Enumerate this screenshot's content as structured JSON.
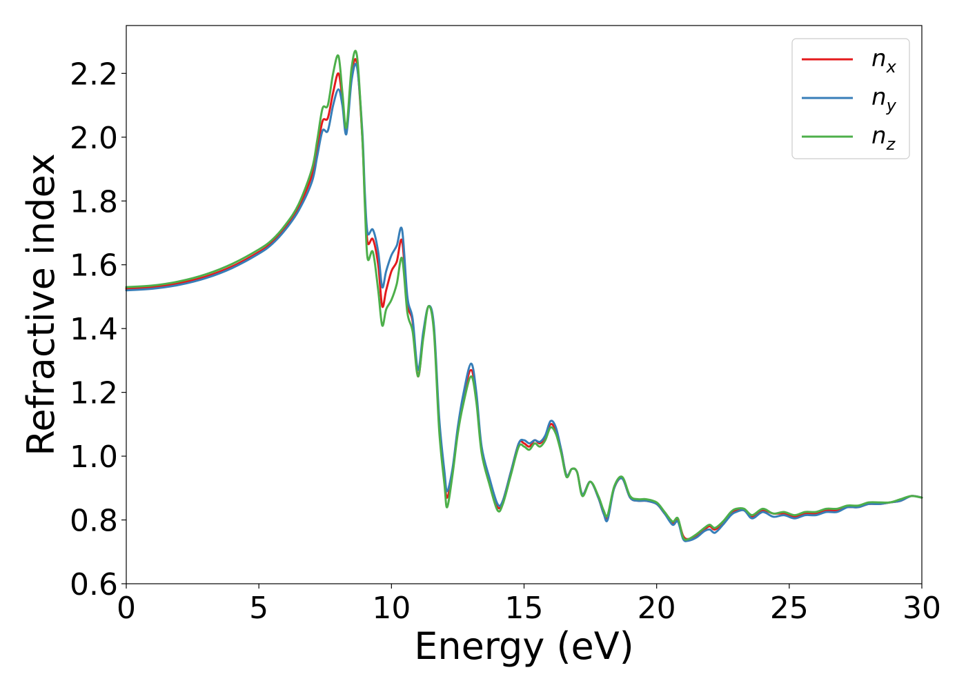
{
  "chart_data": {
    "type": "line",
    "title": "",
    "xlabel": "Energy (eV)",
    "ylabel": "Refractive index",
    "xlim": [
      0,
      30
    ],
    "ylim": [
      0.6,
      2.35
    ],
    "xticks": [
      0,
      5,
      10,
      15,
      20,
      25,
      30
    ],
    "xtick_labels": [
      "0",
      "5",
      "10",
      "15",
      "20",
      "25",
      "30"
    ],
    "yticks": [
      0.6,
      0.8,
      1.0,
      1.2,
      1.4,
      1.6,
      1.8,
      2.0,
      2.2
    ],
    "ytick_labels": [
      "0.6",
      "0.8",
      "1.0",
      "1.2",
      "1.4",
      "1.6",
      "1.8",
      "2.0",
      "2.2"
    ],
    "grid": false,
    "legend_position": "top-right",
    "series": [
      {
        "name": "n_x",
        "legend_main": "n",
        "legend_sub": "x",
        "color": "#e41a1c",
        "x": [
          0,
          1,
          2,
          3,
          4,
          5,
          5.5,
          6,
          6.5,
          7,
          7.2,
          7.4,
          7.6,
          7.8,
          8.0,
          8.15,
          8.3,
          8.5,
          8.7,
          8.9,
          9.0,
          9.1,
          9.3,
          9.5,
          9.65,
          9.8,
          10.0,
          10.2,
          10.4,
          10.6,
          10.8,
          11.0,
          11.2,
          11.4,
          11.6,
          11.8,
          12.0,
          12.1,
          12.3,
          12.5,
          12.7,
          13.0,
          13.2,
          13.4,
          13.7,
          14.0,
          14.2,
          14.5,
          14.8,
          15.0,
          15.2,
          15.4,
          15.6,
          15.8,
          16.0,
          16.2,
          16.4,
          16.6,
          16.8,
          17.0,
          17.2,
          17.5,
          17.8,
          18.0,
          18.15,
          18.4,
          18.7,
          19.0,
          19.3,
          19.6,
          20.0,
          20.3,
          20.6,
          20.8,
          21.0,
          21.2,
          21.5,
          21.8,
          22.0,
          22.2,
          22.5,
          22.8,
          23.0,
          23.3,
          23.6,
          24.0,
          24.4,
          24.8,
          25.2,
          25.6,
          26.0,
          26.4,
          26.8,
          27.2,
          27.6,
          28.0,
          28.4,
          28.8,
          29.2,
          29.6,
          30.0
        ],
        "y": [
          1.525,
          1.53,
          1.542,
          1.563,
          1.595,
          1.64,
          1.67,
          1.715,
          1.78,
          1.88,
          1.96,
          2.05,
          2.06,
          2.14,
          2.2,
          2.12,
          2.02,
          2.2,
          2.23,
          2.0,
          1.8,
          1.67,
          1.68,
          1.6,
          1.47,
          1.52,
          1.58,
          1.61,
          1.675,
          1.48,
          1.42,
          1.25,
          1.38,
          1.47,
          1.4,
          1.1,
          0.93,
          0.87,
          0.95,
          1.08,
          1.18,
          1.27,
          1.18,
          1.02,
          0.92,
          0.84,
          0.86,
          0.95,
          1.04,
          1.04,
          1.03,
          1.05,
          1.04,
          1.06,
          1.1,
          1.08,
          1.02,
          0.94,
          0.96,
          0.95,
          0.88,
          0.92,
          0.87,
          0.82,
          0.81,
          0.9,
          0.93,
          0.87,
          0.86,
          0.86,
          0.85,
          0.82,
          0.79,
          0.8,
          0.75,
          0.74,
          0.75,
          0.77,
          0.78,
          0.77,
          0.79,
          0.82,
          0.83,
          0.83,
          0.81,
          0.83,
          0.82,
          0.82,
          0.81,
          0.82,
          0.82,
          0.83,
          0.83,
          0.84,
          0.84,
          0.85,
          0.85,
          0.855,
          0.86,
          0.875,
          0.87
        ]
      },
      {
        "name": "n_y",
        "legend_main": "n",
        "legend_sub": "y",
        "color": "#377eb8",
        "x": [
          0,
          1,
          2,
          3,
          4,
          5,
          5.5,
          6,
          6.5,
          7,
          7.2,
          7.4,
          7.6,
          7.8,
          8.0,
          8.15,
          8.3,
          8.5,
          8.7,
          8.9,
          9.0,
          9.1,
          9.3,
          9.5,
          9.65,
          9.8,
          10.0,
          10.2,
          10.4,
          10.6,
          10.8,
          11.0,
          11.2,
          11.4,
          11.6,
          11.8,
          12.0,
          12.1,
          12.3,
          12.5,
          12.7,
          13.0,
          13.2,
          13.4,
          13.7,
          14.0,
          14.2,
          14.5,
          14.8,
          15.0,
          15.2,
          15.4,
          15.6,
          15.8,
          16.0,
          16.2,
          16.4,
          16.6,
          16.8,
          17.0,
          17.2,
          17.5,
          17.8,
          18.0,
          18.15,
          18.4,
          18.7,
          19.0,
          19.3,
          19.6,
          20.0,
          20.3,
          20.6,
          20.8,
          21.0,
          21.2,
          21.5,
          21.8,
          22.0,
          22.2,
          22.5,
          22.8,
          23.0,
          23.3,
          23.6,
          24.0,
          24.4,
          24.8,
          25.2,
          25.6,
          26.0,
          26.4,
          26.8,
          27.2,
          27.6,
          28.0,
          28.4,
          28.8,
          29.2,
          29.6,
          30.0
        ],
        "y": [
          1.52,
          1.525,
          1.537,
          1.558,
          1.59,
          1.635,
          1.665,
          1.71,
          1.77,
          1.86,
          1.94,
          2.02,
          2.02,
          2.1,
          2.15,
          2.1,
          2.01,
          2.18,
          2.22,
          2.02,
          1.82,
          1.7,
          1.71,
          1.64,
          1.53,
          1.58,
          1.63,
          1.66,
          1.71,
          1.5,
          1.43,
          1.27,
          1.39,
          1.47,
          1.41,
          1.12,
          0.95,
          0.89,
          0.96,
          1.09,
          1.19,
          1.29,
          1.2,
          1.03,
          0.93,
          0.85,
          0.86,
          0.95,
          1.04,
          1.05,
          1.04,
          1.05,
          1.045,
          1.065,
          1.11,
          1.09,
          1.02,
          0.94,
          0.96,
          0.95,
          0.88,
          0.92,
          0.87,
          0.82,
          0.8,
          0.9,
          0.93,
          0.87,
          0.86,
          0.86,
          0.85,
          0.82,
          0.785,
          0.795,
          0.74,
          0.735,
          0.745,
          0.765,
          0.77,
          0.76,
          0.785,
          0.815,
          0.825,
          0.83,
          0.805,
          0.825,
          0.81,
          0.815,
          0.805,
          0.815,
          0.815,
          0.825,
          0.825,
          0.84,
          0.84,
          0.85,
          0.85,
          0.855,
          0.86,
          0.875,
          0.87
        ]
      },
      {
        "name": "n_z",
        "legend_main": "n",
        "legend_sub": "z",
        "color": "#4daf4a",
        "x": [
          0,
          1,
          2,
          3,
          4,
          5,
          5.5,
          6,
          6.5,
          7,
          7.2,
          7.4,
          7.6,
          7.8,
          8.0,
          8.15,
          8.3,
          8.5,
          8.7,
          8.9,
          9.0,
          9.1,
          9.3,
          9.5,
          9.65,
          9.8,
          10.0,
          10.2,
          10.4,
          10.6,
          10.8,
          11.0,
          11.2,
          11.4,
          11.6,
          11.8,
          12.0,
          12.1,
          12.3,
          12.5,
          12.7,
          13.0,
          13.2,
          13.4,
          13.7,
          14.0,
          14.2,
          14.5,
          14.8,
          15.0,
          15.2,
          15.4,
          15.6,
          15.8,
          16.0,
          16.2,
          16.4,
          16.6,
          16.8,
          17.0,
          17.2,
          17.5,
          17.8,
          18.0,
          18.15,
          18.4,
          18.7,
          19.0,
          19.3,
          19.6,
          20.0,
          20.3,
          20.6,
          20.8,
          21.0,
          21.2,
          21.5,
          21.8,
          22.0,
          22.2,
          22.5,
          22.8,
          23.0,
          23.3,
          23.6,
          24.0,
          24.4,
          24.8,
          25.2,
          25.6,
          26.0,
          26.4,
          26.8,
          27.2,
          27.6,
          28.0,
          28.4,
          28.8,
          29.2,
          29.6,
          30.0
        ],
        "y": [
          1.53,
          1.535,
          1.548,
          1.57,
          1.603,
          1.648,
          1.678,
          1.725,
          1.79,
          1.9,
          1.99,
          2.09,
          2.1,
          2.2,
          2.255,
          2.14,
          2.03,
          2.22,
          2.255,
          2.0,
          1.78,
          1.62,
          1.64,
          1.52,
          1.41,
          1.46,
          1.49,
          1.54,
          1.62,
          1.45,
          1.39,
          1.25,
          1.37,
          1.47,
          1.39,
          1.08,
          0.91,
          0.84,
          0.94,
          1.07,
          1.16,
          1.25,
          1.17,
          1.01,
          0.91,
          0.83,
          0.85,
          0.94,
          1.03,
          1.03,
          1.02,
          1.04,
          1.03,
          1.05,
          1.09,
          1.07,
          1.01,
          0.935,
          0.96,
          0.95,
          0.875,
          0.92,
          0.875,
          0.83,
          0.815,
          0.905,
          0.935,
          0.875,
          0.865,
          0.865,
          0.855,
          0.825,
          0.795,
          0.805,
          0.745,
          0.74,
          0.755,
          0.775,
          0.785,
          0.775,
          0.795,
          0.825,
          0.835,
          0.835,
          0.815,
          0.835,
          0.82,
          0.825,
          0.815,
          0.825,
          0.825,
          0.835,
          0.835,
          0.845,
          0.845,
          0.855,
          0.855,
          0.855,
          0.865,
          0.875,
          0.87
        ]
      }
    ]
  }
}
